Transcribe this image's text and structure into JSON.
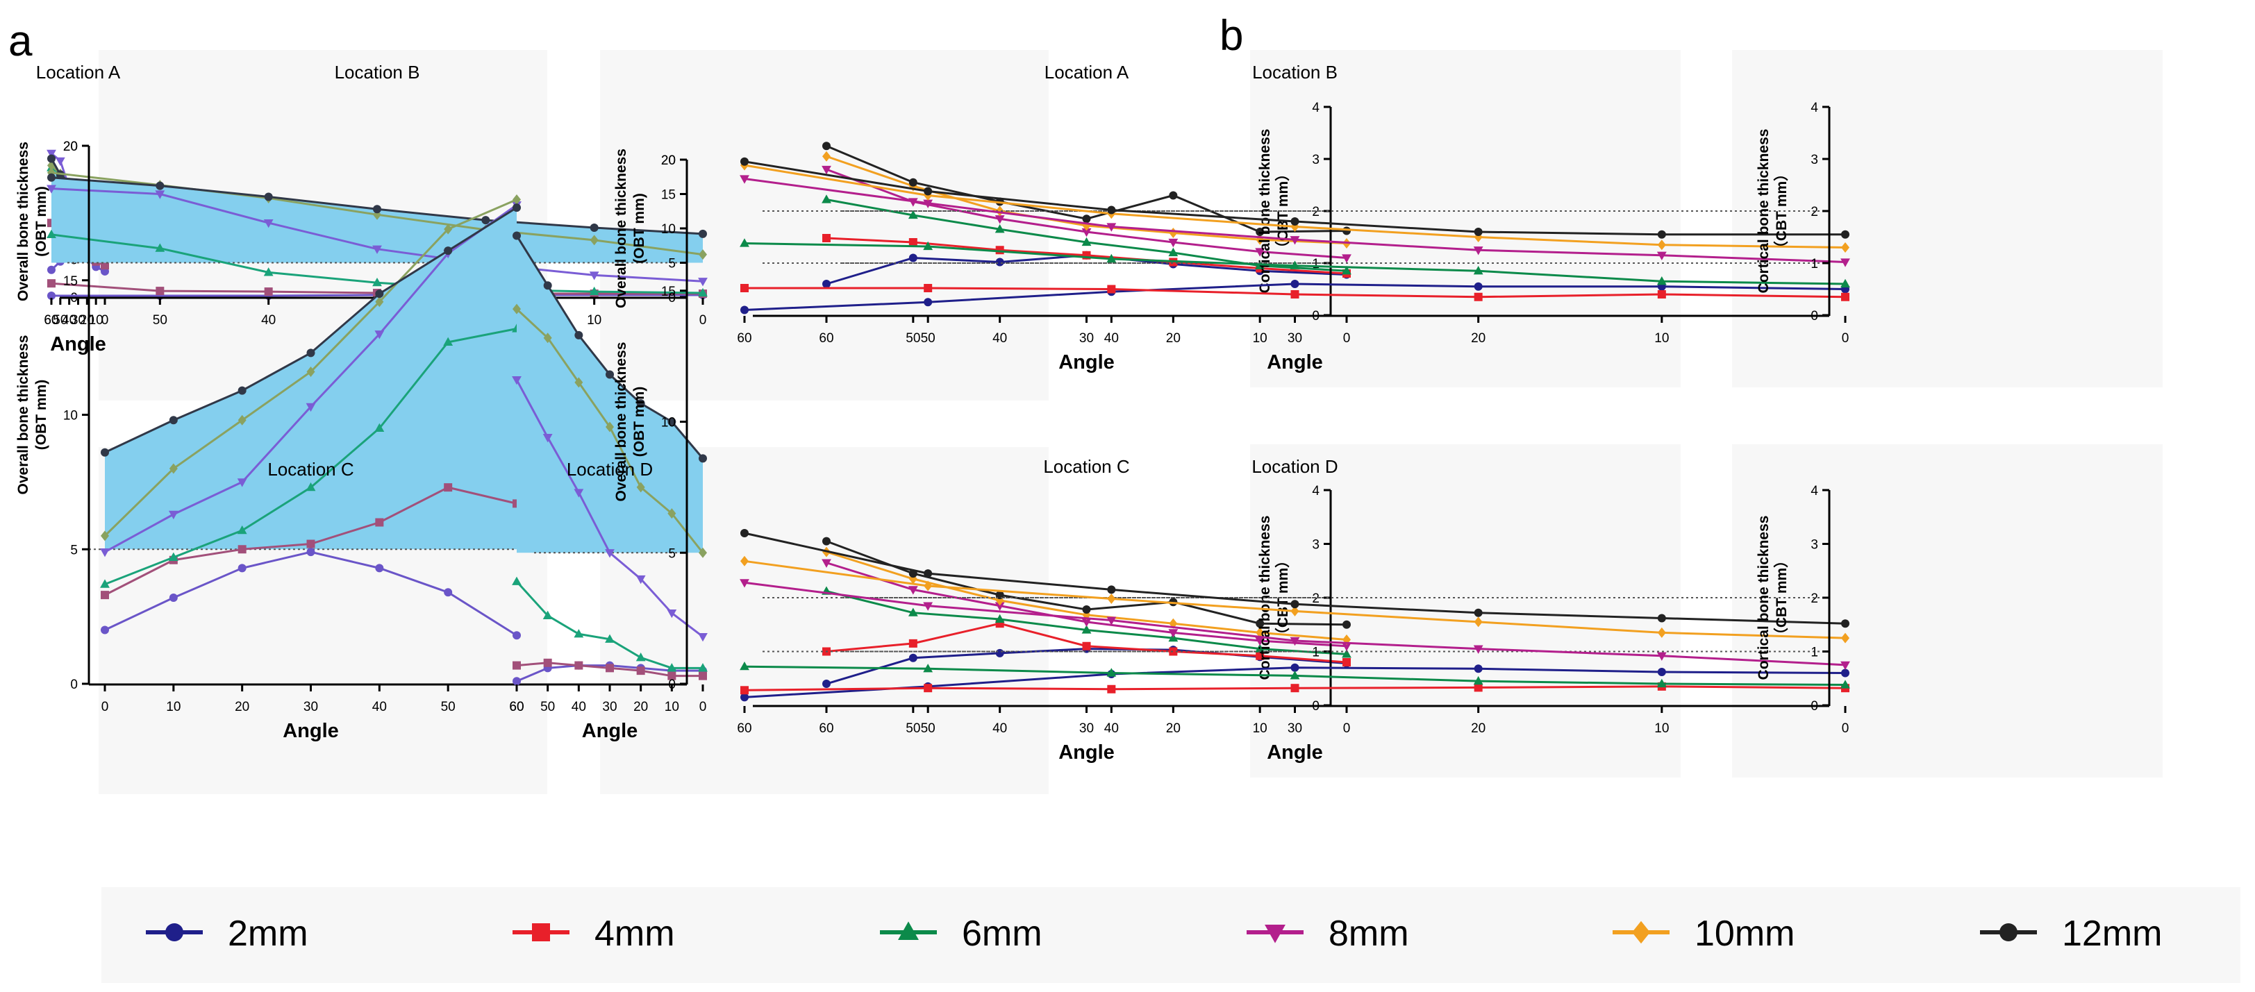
{
  "figure": {
    "panel_a_label": "a",
    "panel_b_label": "b"
  },
  "colors": {
    "2mm": "#1f1f8a",
    "4mm": "#e8202a",
    "6mm": "#0c8a4a",
    "8mm": "#b31f8c",
    "10mm": "#f2a020",
    "12mm": "#222222",
    "fill": "#84cfee",
    "fill_line_2mm": "#6a55c8",
    "fill_line_4mm": "#a2507a",
    "fill_line_6mm": "#1aa37a",
    "fill_line_8mm": "#7a5dd5",
    "fill_line_10mm": "#8aa260",
    "fill_line_12mm": "#303848"
  },
  "legend": {
    "items": [
      {
        "key": "2mm",
        "label": "2mm",
        "marker": "circle"
      },
      {
        "key": "4mm",
        "label": "4mm",
        "marker": "square"
      },
      {
        "key": "6mm",
        "label": "6mm",
        "marker": "triangle-up"
      },
      {
        "key": "8mm",
        "label": "8mm",
        "marker": "triangle-down"
      },
      {
        "key": "10mm",
        "label": "10mm",
        "marker": "diamond"
      },
      {
        "key": "12mm",
        "label": "12mm",
        "marker": "circle"
      }
    ]
  },
  "chart_data": [
    {
      "id": "a-A",
      "panel": "a",
      "type": "line",
      "title": "Location A",
      "xlabel": "Angle",
      "ylabel": [
        "Overall bone thickness",
        "(OBT mm)"
      ],
      "x": [
        0,
        10,
        20,
        30,
        40,
        50,
        60
      ],
      "xlim": [
        0,
        60
      ],
      "ylim": [
        0,
        20
      ],
      "yticks": [
        0,
        5,
        10,
        15,
        20
      ],
      "reference_lines": [
        5
      ],
      "fill_between": [
        5,
        "12mm"
      ],
      "series": [
        {
          "name": "2mm",
          "values": [
            3.4,
            4.0,
            5.1,
            5.8,
            5.2,
            4.7,
            3.6
          ]
        },
        {
          "name": "4mm",
          "values": [
            4.2,
            4.7,
            5.6,
            6.3,
            8.1,
            10.1,
            9.8
          ]
        },
        {
          "name": "6mm",
          "values": [
            5.1,
            5.7,
            6.6,
            8.7,
            11.1,
            16.3,
            17.1
          ]
        },
        {
          "name": "8mm",
          "values": [
            6.4,
            7.6,
            8.9,
            11.5,
            14.5,
            18.0,
            19.0
          ]
        },
        {
          "name": "10mm",
          "values": [
            8.4,
            9.3,
            10.7,
            12.6,
            15.1,
            16.3,
            17.4
          ]
        },
        {
          "name": "12mm",
          "values": [
            9.7,
            10.4,
            11.5,
            13.2,
            15.2,
            16.2,
            18.3
          ]
        }
      ]
    },
    {
      "id": "a-B",
      "panel": "a",
      "type": "line",
      "title": "Location B",
      "xlabel": "Angle",
      "ylabel": [
        "Overall bone thickness",
        "(OBT mm)"
      ],
      "x": [
        0,
        10,
        20,
        30,
        40,
        50,
        60
      ],
      "xlim": [
        0,
        60
      ],
      "ylim": [
        0,
        20
      ],
      "yticks": [
        0,
        5,
        10,
        15,
        20
      ],
      "reference_lines": [
        5
      ],
      "fill_between": [
        5,
        "12mm"
      ],
      "series": [
        {
          "name": "2mm",
          "values": [
            0.3,
            0.3,
            0.3,
            0.3,
            0.2,
            0.2,
            0.2
          ]
        },
        {
          "name": "4mm",
          "values": [
            0.5,
            0.5,
            0.5,
            0.6,
            0.8,
            0.9,
            2.0
          ]
        },
        {
          "name": "6mm",
          "values": [
            0.6,
            0.8,
            1.1,
            2.1,
            3.6,
            7.1,
            9.1
          ]
        },
        {
          "name": "8mm",
          "values": [
            2.3,
            3.2,
            4.8,
            7.0,
            10.8,
            15.0,
            15.8
          ]
        },
        {
          "name": "10mm",
          "values": [
            6.2,
            8.3,
            9.8,
            12.0,
            14.4,
            16.3,
            18.1
          ]
        },
        {
          "name": "12mm",
          "values": [
            9.2,
            10.1,
            11.2,
            12.8,
            14.6,
            16.2,
            17.4
          ]
        }
      ]
    },
    {
      "id": "a-C",
      "panel": "a",
      "type": "line",
      "title": "Location C",
      "xlabel": "Angle",
      "ylabel": [
        "Overall bone thickness",
        "(OBT mm)"
      ],
      "x": [
        0,
        10,
        20,
        30,
        40,
        50,
        60
      ],
      "xlim": [
        0,
        60
      ],
      "ylim": [
        0,
        20
      ],
      "yticks": [
        0,
        5,
        10,
        15,
        20
      ],
      "reference_lines": [
        5
      ],
      "fill_between": [
        5,
        "12mm"
      ],
      "series": [
        {
          "name": "2mm",
          "values": [
            2.0,
            3.2,
            4.3,
            4.9,
            4.3,
            3.4,
            1.8
          ]
        },
        {
          "name": "4mm",
          "values": [
            3.3,
            4.6,
            5.0,
            5.2,
            6.0,
            7.3,
            6.7
          ]
        },
        {
          "name": "6mm",
          "values": [
            3.7,
            4.7,
            5.7,
            7.3,
            9.5,
            12.7,
            13.2
          ]
        },
        {
          "name": "8mm",
          "values": [
            4.9,
            6.3,
            7.5,
            10.3,
            13.0,
            16.0,
            17.8
          ]
        },
        {
          "name": "10mm",
          "values": [
            5.5,
            8.0,
            9.8,
            11.6,
            14.2,
            16.9,
            18.0
          ]
        },
        {
          "name": "12mm",
          "values": [
            8.6,
            9.8,
            10.9,
            12.3,
            14.5,
            16.1,
            17.7
          ]
        }
      ]
    },
    {
      "id": "a-D",
      "panel": "a",
      "type": "line",
      "title": "Location D",
      "xlabel": "Angle",
      "ylabel": [
        "Overall bone thickness",
        "(OBT mm)"
      ],
      "x": [
        0,
        10,
        20,
        30,
        40,
        50,
        60
      ],
      "xlim": [
        0,
        60
      ],
      "ylim": [
        0,
        20
      ],
      "yticks": [
        0,
        5,
        10,
        15,
        20
      ],
      "reference_lines": [
        5
      ],
      "fill_between": [
        5,
        "12mm"
      ],
      "series": [
        {
          "name": "2mm",
          "values": [
            0.5,
            0.5,
            0.6,
            0.7,
            0.7,
            0.6,
            0.1
          ]
        },
        {
          "name": "4mm",
          "values": [
            0.3,
            0.3,
            0.5,
            0.6,
            0.7,
            0.8,
            0.7
          ]
        },
        {
          "name": "6mm",
          "values": [
            0.6,
            0.6,
            1.0,
            1.7,
            1.9,
            2.6,
            3.9
          ]
        },
        {
          "name": "8mm",
          "values": [
            1.8,
            2.7,
            4.0,
            5.0,
            7.3,
            9.4,
            11.6
          ]
        },
        {
          "name": "10mm",
          "values": [
            5.0,
            6.5,
            7.5,
            9.8,
            11.5,
            13.2,
            14.3
          ]
        },
        {
          "name": "12mm",
          "values": [
            8.6,
            10.0,
            10.7,
            11.8,
            13.3,
            15.2,
            17.1
          ]
        }
      ]
    },
    {
      "id": "b-A",
      "panel": "b",
      "type": "line",
      "title": "Location A",
      "xlabel": "Angle",
      "ylabel": [
        "Cortical bone thickness",
        "（CBT mm）"
      ],
      "x": [
        0,
        10,
        20,
        30,
        40,
        50,
        60
      ],
      "xlim": [
        0,
        60
      ],
      "ylim": [
        0,
        4
      ],
      "yticks": [
        0,
        1,
        2,
        3,
        4
      ],
      "reference_lines": [
        1,
        2
      ],
      "series": [
        {
          "name": "2mm",
          "values": [
            0.78,
            0.85,
            0.98,
            1.15,
            1.02,
            1.1,
            0.6
          ]
        },
        {
          "name": "4mm",
          "values": [
            0.8,
            0.9,
            1.02,
            1.15,
            1.25,
            1.4,
            1.48
          ]
        },
        {
          "name": "6mm",
          "values": [
            0.85,
            0.95,
            1.2,
            1.4,
            1.65,
            1.92,
            2.22
          ]
        },
        {
          "name": "8mm",
          "values": [
            1.1,
            1.22,
            1.4,
            1.6,
            1.85,
            2.18,
            2.8
          ]
        },
        {
          "name": "10mm",
          "values": [
            1.38,
            1.45,
            1.58,
            1.72,
            2.0,
            2.48,
            3.05
          ]
        },
        {
          "name": "12mm",
          "values": [
            1.62,
            1.6,
            2.3,
            1.85,
            2.18,
            2.55,
            3.25
          ]
        }
      ]
    },
    {
      "id": "b-B",
      "panel": "b",
      "type": "line",
      "title": "Location B",
      "xlabel": "Angle",
      "ylabel": [
        "Cortical bone thickness",
        "（CBT mm）"
      ],
      "x": [
        0,
        10,
        20,
        30,
        40,
        50,
        60
      ],
      "xlim": [
        0,
        60
      ],
      "ylim": [
        0,
        4
      ],
      "yticks": [
        0,
        1,
        2,
        3,
        4
      ],
      "reference_lines": [
        1,
        2
      ],
      "series": [
        {
          "name": "2mm",
          "values": [
            0.5,
            0.55,
            0.55,
            0.6,
            0.45,
            0.25,
            0.1
          ]
        },
        {
          "name": "4mm",
          "values": [
            0.35,
            0.4,
            0.35,
            0.4,
            0.5,
            0.52,
            0.52
          ]
        },
        {
          "name": "6mm",
          "values": [
            0.6,
            0.65,
            0.85,
            0.95,
            1.08,
            1.32,
            1.38
          ]
        },
        {
          "name": "8mm",
          "values": [
            1.02,
            1.15,
            1.25,
            1.45,
            1.7,
            2.15,
            2.62
          ]
        },
        {
          "name": "10mm",
          "values": [
            1.3,
            1.35,
            1.5,
            1.7,
            1.95,
            2.3,
            2.88
          ]
        },
        {
          "name": "12mm",
          "values": [
            1.55,
            1.55,
            1.6,
            1.8,
            2.02,
            2.38,
            2.95
          ]
        }
      ]
    },
    {
      "id": "b-C",
      "panel": "b",
      "type": "line",
      "title": "Location C",
      "xlabel": "Angle",
      "ylabel": [
        "Cortical bone thickness",
        "（CBT mm）"
      ],
      "x": [
        0,
        10,
        20,
        30,
        40,
        50,
        60
      ],
      "xlim": [
        0,
        60
      ],
      "ylim": [
        0,
        4
      ],
      "yticks": [
        0,
        1,
        2,
        3,
        4
      ],
      "reference_lines": [
        1,
        2
      ],
      "series": [
        {
          "name": "2mm",
          "values": [
            0.78,
            0.9,
            1.03,
            1.05,
            0.97,
            0.88,
            0.4
          ]
        },
        {
          "name": "4mm",
          "values": [
            0.8,
            0.92,
            1.0,
            1.1,
            1.52,
            1.15,
            1.0
          ]
        },
        {
          "name": "6mm",
          "values": [
            0.95,
            1.05,
            1.25,
            1.4,
            1.6,
            1.72,
            2.12
          ]
        },
        {
          "name": "8mm",
          "values": [
            1.1,
            1.2,
            1.35,
            1.55,
            1.85,
            2.15,
            2.65
          ]
        },
        {
          "name": "10mm",
          "values": [
            1.22,
            1.35,
            1.52,
            1.68,
            1.95,
            2.35,
            2.85
          ]
        },
        {
          "name": "12mm",
          "values": [
            1.5,
            1.52,
            1.92,
            1.78,
            2.05,
            2.45,
            3.05
          ]
        }
      ]
    },
    {
      "id": "b-D",
      "panel": "b",
      "type": "line",
      "title": "Location D",
      "xlabel": "Angle",
      "ylabel": [
        "Cortical bone  thickness",
        "（CBT mm）"
      ],
      "x": [
        0,
        10,
        20,
        30,
        40,
        50,
        60
      ],
      "xlim": [
        0,
        60
      ],
      "ylim": [
        0,
        4
      ],
      "yticks": [
        0,
        1,
        2,
        3,
        4
      ],
      "reference_lines": [
        1,
        2
      ],
      "series": [
        {
          "name": "2mm",
          "values": [
            0.6,
            0.62,
            0.68,
            0.7,
            0.58,
            0.35,
            0.15
          ]
        },
        {
          "name": "4mm",
          "values": [
            0.32,
            0.35,
            0.33,
            0.32,
            0.3,
            0.32,
            0.28
          ]
        },
        {
          "name": "6mm",
          "values": [
            0.38,
            0.4,
            0.45,
            0.55,
            0.6,
            0.68,
            0.72
          ]
        },
        {
          "name": "8mm",
          "values": [
            0.75,
            0.92,
            1.05,
            1.2,
            1.58,
            1.85,
            2.28
          ]
        },
        {
          "name": "10mm",
          "values": [
            1.25,
            1.35,
            1.55,
            1.75,
            1.98,
            2.22,
            2.68
          ]
        },
        {
          "name": "12mm",
          "values": [
            1.52,
            1.62,
            1.72,
            1.88,
            2.15,
            2.45,
            3.2
          ]
        }
      ]
    }
  ]
}
